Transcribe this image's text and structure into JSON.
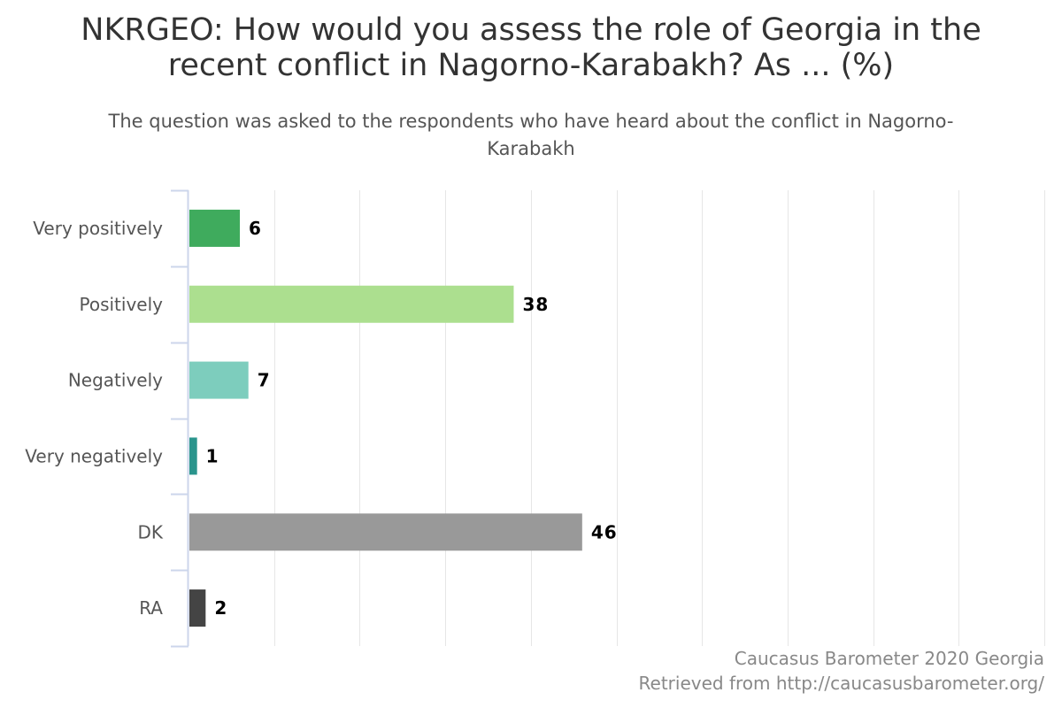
{
  "chart_data": {
    "type": "bar",
    "orientation": "horizontal",
    "title_lines": [
      "NKRGEO: How would you assess the role of Georgia in the",
      "recent conflict in Nagorno-Karabakh? As ... (%)"
    ],
    "subtitle_lines": [
      "The question was asked to the respondents who have heard about the conflict in Nagorno-",
      "Karabakh"
    ],
    "categories": [
      "Very positively",
      "Positively",
      "Negatively",
      "Very negatively",
      "DK",
      "RA"
    ],
    "values": [
      6,
      38,
      7,
      1,
      46,
      2
    ],
    "colors": [
      "#3fab5d",
      "#acdf8f",
      "#7dcdbd",
      "#2a948c",
      "#999999",
      "#444444"
    ],
    "xlim": [
      0,
      100
    ],
    "grid": true,
    "legend": "none",
    "data_labels": true
  },
  "credits": {
    "line1": "Caucasus Barometer 2020 Georgia",
    "line2": "Retrieved from http://caucasusbarometer.org/"
  }
}
